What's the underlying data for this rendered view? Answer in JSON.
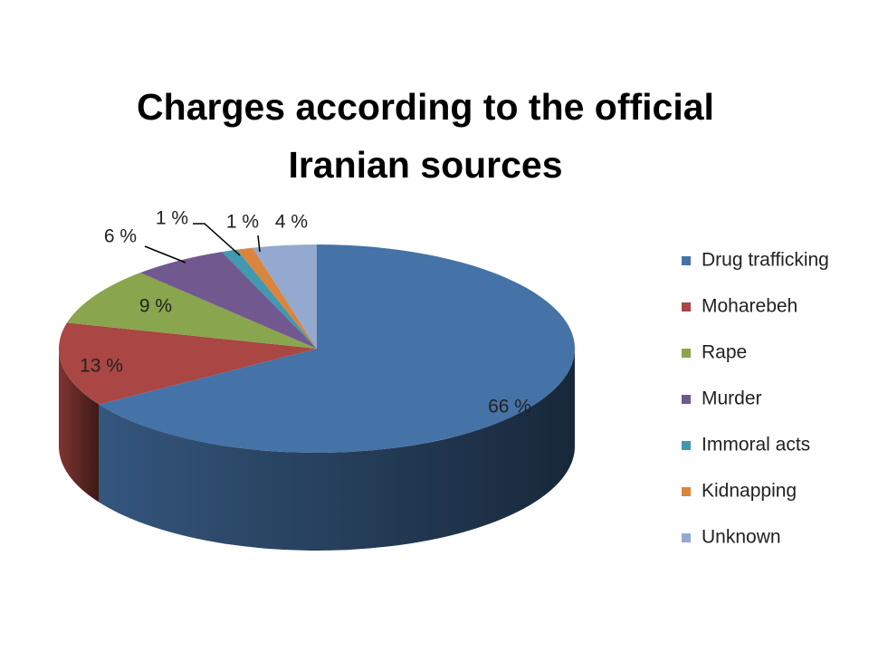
{
  "chart_data": {
    "type": "pie",
    "title": "Charges according to the official Iranian sources",
    "categories": [
      "Drug trafficking",
      "Moharebeh",
      "Rape",
      "Murder",
      "Immoral acts",
      "Kidnapping",
      "Unknown"
    ],
    "values": [
      66,
      13,
      9,
      6,
      1,
      1,
      4
    ],
    "value_labels": [
      "66 %",
      "13 %",
      "9 %",
      "6 %",
      "1 %",
      "1 %",
      "4 %"
    ],
    "colors": [
      "#4572a7",
      "#aa4643",
      "#89a54e",
      "#71588f",
      "#4198af",
      "#db843d",
      "#93a9cf"
    ],
    "legend": "right"
  }
}
